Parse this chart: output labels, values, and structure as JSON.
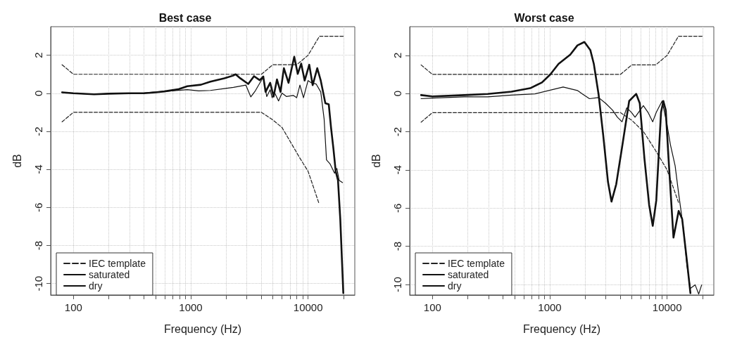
{
  "chart_data": [
    {
      "type": "line",
      "title": "Best case",
      "xlabel": "Frequency (Hz)",
      "ylabel": "dB",
      "log": "x",
      "grid": true,
      "legend": "bottom left",
      "marker": "none",
      "xlim": [
        64,
        25000
      ],
      "xticks": [
        100,
        {
          "value": 200,
          "label": null
        },
        {
          "value": 300,
          "label": null
        },
        {
          "value": 400,
          "label": null
        },
        {
          "value": 500,
          "label": null
        },
        {
          "value": 600,
          "label": null
        },
        {
          "value": 700,
          "label": null
        },
        {
          "value": 800,
          "label": null
        },
        {
          "value": 900,
          "label": null
        },
        1000,
        {
          "value": 2000,
          "label": null
        },
        {
          "value": 3000,
          "label": null
        },
        {
          "value": 4000,
          "label": null
        },
        {
          "value": 5000,
          "label": null
        },
        {
          "value": 6000,
          "label": null
        },
        {
          "value": 7000,
          "label": null
        },
        {
          "value": 8000,
          "label": null
        },
        {
          "value": 9000,
          "label": null
        },
        10000,
        {
          "value": 20000,
          "label": null
        }
      ],
      "ylim": [
        -10.6,
        3.5
      ],
      "yticks": [
        -10,
        -8,
        -6,
        -4,
        -2,
        0,
        2
      ],
      "series": [
        {
          "name": "IEC template",
          "color": "#222222",
          "line_style": "dashed",
          "x": [
            80,
            100,
            4000,
            5000,
            8000,
            10000,
            12500,
            20000
          ],
          "values": [
            1.5,
            1,
            1,
            1.5,
            1.5,
            2,
            3,
            3
          ]
        },
        {
          "color": "#222222",
          "line_style": "dashed",
          "x": [
            80,
            100,
            4000,
            5000,
            6000,
            8500,
            10000,
            12400
          ],
          "values": [
            -1.5,
            -1,
            -1,
            -1.4,
            -1.8,
            -3.4,
            -4.1,
            -5.8
          ]
        },
        {
          "name": "saturated",
          "color": "#111111",
          "line_style": "solid",
          "x": [
            80,
            100,
            150,
            200,
            300,
            400,
            500,
            596,
            780,
            934,
            1220,
            1470,
            1930,
            2300,
            2410,
            2640,
            3090,
            3460,
            3870,
            4150,
            4340,
            4750,
            5080,
            5430,
            5820,
            6220,
            6810,
            7620,
            8160,
            8730,
            9350,
            10230,
            10940,
            11970,
            12820,
            14030,
            15000,
            15700,
            16430,
            17190,
            17980,
            18800,
            19950
          ],
          "values": [
            0.05,
            0,
            -0.05,
            -0.02,
            0,
            0,
            0.05,
            0.1,
            0.21,
            0.37,
            0.45,
            0.61,
            0.79,
            0.93,
            1.0,
            0.79,
            0.49,
            0.9,
            0.69,
            0.88,
            0.07,
            0.55,
            -0.17,
            0.73,
            0.07,
            1.32,
            0.55,
            1.92,
            1.02,
            1.56,
            0.67,
            1.5,
            0.43,
            1.32,
            0.67,
            -0.52,
            -0.58,
            -1.83,
            -2.9,
            -4.1,
            -4.57,
            -6.6,
            -10.5
          ]
        },
        {
          "name": "dry",
          "color": "#111111",
          "line_style": "solid",
          "x": [
            80,
            100,
            150,
            200,
            300,
            400,
            500,
            596,
            934,
            1170,
            1470,
            1930,
            2310,
            2950,
            3250,
            3550,
            4150,
            4440,
            4750,
            4940,
            5150,
            5600,
            5990,
            6550,
            7470,
            7990,
            8520,
            9130,
            9990,
            10690,
            11700,
            12820,
            13700,
            14350,
            15350,
            16800,
            17590,
            18380,
            19660
          ],
          "values": [
            0.05,
            0,
            -0.05,
            -0.02,
            0,
            0.02,
            0.07,
            0.1,
            0.19,
            0.13,
            0.15,
            0.25,
            0.31,
            0.43,
            -0.19,
            0.13,
            0.85,
            -0.17,
            0.19,
            -0.23,
            0.07,
            -0.4,
            0.01,
            -0.17,
            -0.11,
            -0.23,
            0.43,
            -0.23,
            0.67,
            0.55,
            0.49,
            0.07,
            -1.36,
            -3.5,
            -3.7,
            -4.2,
            -3.95,
            -4.57,
            -4.69
          ]
        }
      ]
    },
    {
      "type": "line",
      "title": "Worst case",
      "xlabel": "Frequency (Hz)",
      "ylabel": "dB",
      "log": "x",
      "grid": true,
      "legend": "bottom left",
      "marker": "none",
      "xlim": [
        64,
        25000
      ],
      "xticks": [
        100,
        {
          "value": 200,
          "label": null
        },
        {
          "value": 300,
          "label": null
        },
        {
          "value": 400,
          "label": null
        },
        {
          "value": 500,
          "label": null
        },
        {
          "value": 600,
          "label": null
        },
        {
          "value": 700,
          "label": null
        },
        {
          "value": 800,
          "label": null
        },
        {
          "value": 900,
          "label": null
        },
        1000,
        {
          "value": 2000,
          "label": null
        },
        {
          "value": 3000,
          "label": null
        },
        {
          "value": 4000,
          "label": null
        },
        {
          "value": 5000,
          "label": null
        },
        {
          "value": 6000,
          "label": null
        },
        {
          "value": 7000,
          "label": null
        },
        {
          "value": 8000,
          "label": null
        },
        {
          "value": 9000,
          "label": null
        },
        10000,
        {
          "value": 20000,
          "label": null
        }
      ],
      "ylim": [
        -10.55,
        3.5
      ],
      "yticks": [
        -10,
        -8,
        -6,
        -4,
        -2,
        0,
        2
      ],
      "series": [
        {
          "name": "IEC template",
          "color": "#222222",
          "line_style": "dashed",
          "x": [
            80,
            100,
            4000,
            5000,
            8000,
            10000,
            12500,
            20000
          ],
          "values": [
            1.5,
            1,
            1,
            1.5,
            1.5,
            2,
            3,
            3
          ]
        },
        {
          "color": "#222222",
          "line_style": "dashed",
          "x": [
            80,
            100,
            4000,
            5000,
            6300,
            8000,
            10000,
            12500
          ],
          "values": [
            -1.5,
            -1,
            -1,
            -1.4,
            -2,
            -3,
            -4,
            -5.7
          ]
        },
        {
          "name": "saturated",
          "color": "#111111",
          "line_style": "solid",
          "x": [
            80,
            100,
            187,
            296,
            471,
            681,
            858,
            1010,
            1187,
            1495,
            1720,
            1972,
            2215,
            2374,
            2603,
            2855,
            3134,
            3357,
            3683,
            4132,
            4750,
            5453,
            5846,
            6411,
            7031,
            7542,
            8083,
            8870,
            9290,
            9730,
            10430,
            11330,
            12540,
            13440,
            14740,
            15800
          ],
          "values": [
            -0.08,
            -0.15,
            -0.08,
            -0.02,
            0.1,
            0.28,
            0.58,
            1.0,
            1.55,
            2.04,
            2.52,
            2.7,
            2.28,
            1.55,
            -0.02,
            -2.2,
            -4.63,
            -5.66,
            -4.75,
            -2.81,
            -0.39,
            -0.02,
            -0.51,
            -3.42,
            -5.84,
            -6.93,
            -5.6,
            -0.99,
            -0.39,
            -0.87,
            -4.02,
            -7.54,
            -6.15,
            -6.57,
            -8.75,
            -10.45
          ]
        },
        {
          "name": "dry",
          "color": "#111111",
          "line_style": "solid",
          "x": [
            80,
            100,
            187,
            296,
            471,
            748,
            1081,
            1300,
            1720,
            1895,
            2180,
            2603,
            2990,
            3430,
            3770,
            4130,
            4530,
            4970,
            5330,
            5700,
            6270,
            6880,
            7540,
            8080,
            9070,
            9960,
            10680,
            11700,
            12540,
            13760,
            14740,
            15800,
            17340,
            18580,
            19700
          ],
          "values": [
            -0.27,
            -0.24,
            -0.17,
            -0.17,
            -0.08,
            -0.02,
            0.22,
            0.34,
            0.16,
            -0.02,
            -0.27,
            -0.21,
            -0.51,
            -0.87,
            -1.24,
            -1.48,
            -0.75,
            -0.99,
            -1.24,
            -0.99,
            -0.63,
            -0.99,
            -1.48,
            -0.99,
            -0.39,
            -1.6,
            -2.69,
            -3.78,
            -5.24,
            -7.05,
            -8.99,
            -10.2,
            -10.02,
            -10.5,
            -10.02
          ]
        }
      ]
    }
  ]
}
